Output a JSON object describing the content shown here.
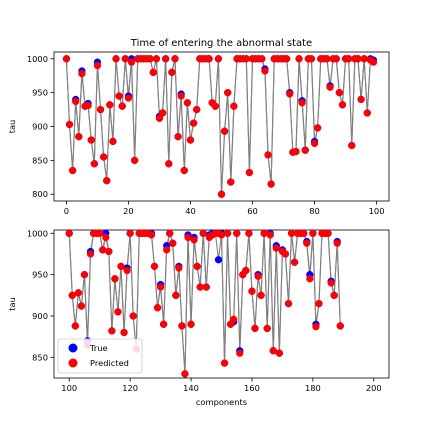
{
  "chart_data": [
    {
      "type": "scatter",
      "title": "Time of entering the abnormal state",
      "xlabel": "",
      "ylabel": "tau",
      "xlim": [
        -4,
        104
      ],
      "ylim": [
        790,
        1010
      ],
      "xticks": [
        0,
        20,
        40,
        60,
        80,
        100
      ],
      "yticks": [
        800,
        850,
        900,
        950,
        1000
      ],
      "legend": null,
      "line_color": "#808080",
      "series": [
        {
          "name": "True",
          "color": "#0000ff",
          "values": [
            1000,
            903,
            835,
            940,
            885,
            982,
            930,
            934,
            880,
            845,
            995,
            925,
            855,
            820,
            932,
            878,
            1000,
            945,
            930,
            1000,
            945,
            1000,
            850,
            1000,
            1000,
            1000,
            1000,
            1000,
            980,
            1000,
            915,
            920,
            1000,
            845,
            980,
            1000,
            885,
            948,
            835,
            935,
            880,
            905,
            925,
            1000,
            1000,
            1000,
            1000,
            935,
            930,
            1000,
            800,
            893,
            950,
            818,
            930,
            1000,
            1000,
            1000,
            1000,
            832,
            1000,
            1000,
            1000,
            1000,
            985,
            858,
            815,
            1000,
            1000,
            1000,
            1000,
            1000,
            950,
            862,
            863,
            1000,
            938,
            865,
            1000,
            1000,
            878,
            898,
            1000,
            1000,
            1000,
            960,
            1000,
            1000,
            950,
            932,
            1000,
            1000,
            872,
            1000,
            1000,
            940,
            1000,
            920,
            1000,
            998
          ]
        },
        {
          "name": "Predicted",
          "color": "#ff0000",
          "values": [
            1000,
            903,
            835,
            937,
            885,
            978,
            930,
            931,
            880,
            845,
            990,
            925,
            855,
            820,
            932,
            878,
            1000,
            945,
            930,
            1000,
            942,
            995,
            850,
            1000,
            1000,
            1000,
            1000,
            1000,
            980,
            1000,
            912,
            920,
            1000,
            845,
            980,
            1000,
            885,
            945,
            835,
            935,
            880,
            905,
            925,
            1000,
            1000,
            1000,
            1000,
            935,
            930,
            1000,
            800,
            893,
            950,
            818,
            930,
            1000,
            1000,
            1000,
            1000,
            832,
            1000,
            1000,
            1000,
            1000,
            982,
            858,
            815,
            1000,
            1000,
            1000,
            1000,
            1000,
            948,
            862,
            863,
            1000,
            935,
            865,
            1000,
            1000,
            875,
            898,
            1000,
            1000,
            1000,
            958,
            1000,
            1000,
            950,
            932,
            1000,
            1000,
            872,
            1000,
            1000,
            940,
            1000,
            920,
            998,
            995
          ]
        }
      ]
    },
    {
      "type": "scatter",
      "title": "",
      "xlabel": "components",
      "ylabel": "tau",
      "xlim": [
        95,
        205
      ],
      "ylim": [
        825,
        1004
      ],
      "xticks": [
        100,
        120,
        140,
        160,
        180,
        200
      ],
      "yticks": [
        850,
        900,
        950,
        1000
      ],
      "legend": "lower-left",
      "line_color": "#808080",
      "series": [
        {
          "name": "True",
          "color": "#0000ff",
          "values": [
            1000,
            925,
            888,
            928,
            912,
            950,
            870,
            978,
            1000,
            1000,
            1000,
            980,
            1000,
            978,
            882,
            945,
            905,
            960,
            880,
            958,
            1000,
            900,
            860,
            1000,
            1000,
            1000,
            1000,
            1000,
            960,
            910,
            938,
            890,
            985,
            1000,
            988,
            925,
            960,
            888,
            830,
            998,
            890,
            995,
            960,
            935,
            1000,
            935,
            998,
            1000,
            1000,
            968,
            1000,
            843,
            1000,
            890,
            893,
            1000,
            858,
            950,
            955,
            1000,
            930,
            885,
            950,
            925,
            1000,
            885,
            1000,
            858,
            985,
            855,
            980,
            975,
            915,
            1000,
            965,
            1000,
            1000,
            1000,
            990,
            950,
            1000,
            890,
            915,
            1000,
            1000,
            1000,
            942,
            925,
            990,
            888
          ]
        },
        {
          "name": "Predicted",
          "color": "#ff0000",
          "values": [
            1000,
            925,
            888,
            928,
            912,
            950,
            865,
            975,
            1000,
            1000,
            1000,
            980,
            995,
            978,
            882,
            945,
            905,
            960,
            880,
            955,
            1000,
            900,
            860,
            1000,
            1000,
            1000,
            1000,
            998,
            960,
            910,
            935,
            890,
            980,
            1000,
            988,
            925,
            958,
            888,
            830,
            995,
            890,
            992,
            960,
            935,
            1000,
            935,
            995,
            998,
            1000,
            1000,
            998,
            843,
            1000,
            890,
            896,
            1000,
            855,
            950,
            955,
            1000,
            930,
            885,
            948,
            925,
            1000,
            885,
            998,
            858,
            982,
            855,
            978,
            975,
            915,
            1000,
            965,
            1000,
            1000,
            1000,
            988,
            945,
            1000,
            887,
            915,
            1000,
            1000,
            1000,
            940,
            925,
            988,
            888
          ]
        }
      ]
    }
  ]
}
